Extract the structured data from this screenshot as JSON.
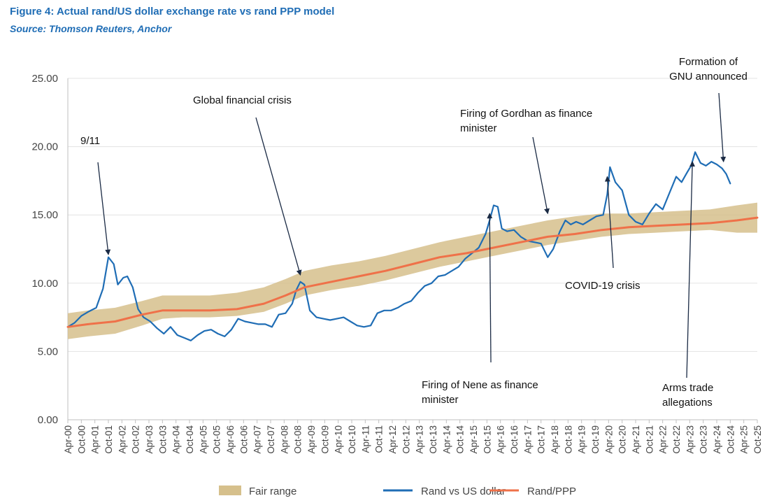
{
  "title": "Figure 4: Actual rand/US dollar exchange rate vs rand PPP model",
  "source": "Source: Thomson Reuters, Anchor",
  "chart_data": {
    "type": "line",
    "title": "Figure 4: Actual rand/US dollar exchange rate vs rand PPP model",
    "ylim": [
      0,
      25
    ],
    "xlim": [
      2000.25,
      2025.75
    ],
    "yticks": [
      "0.00",
      "5.00",
      "10.00",
      "15.00",
      "20.00",
      "25.00"
    ],
    "xticks": [
      "Apr-00",
      "Oct-00",
      "Apr-01",
      "Oct-01",
      "Apr-02",
      "Oct-02",
      "Apr-03",
      "Oct-03",
      "Apr-04",
      "Oct-04",
      "Apr-05",
      "Oct-05",
      "Apr-06",
      "Oct-06",
      "Apr-07",
      "Oct-07",
      "Apr-08",
      "Oct-08",
      "Apr-09",
      "Oct-09",
      "Apr-10",
      "Oct-10",
      "Apr-11",
      "Oct-11",
      "Apr-12",
      "Oct-12",
      "Apr-13",
      "Oct-13",
      "Apr-14",
      "Oct-14",
      "Apr-15",
      "Oct-15",
      "Apr-16",
      "Oct-16",
      "Apr-17",
      "Oct-17",
      "Apr-18",
      "Oct-18",
      "Apr-19",
      "Oct-19",
      "Apr-20",
      "Oct-20",
      "Apr-21",
      "Oct-21",
      "Apr-22",
      "Oct-22",
      "Apr-23",
      "Oct-23",
      "Apr-24",
      "Oct-24",
      "Apr-25",
      "Oct-25"
    ],
    "grid": true,
    "legend_position": "bottom",
    "series": [
      {
        "name": "Fair range",
        "type": "band",
        "color": "#d6c08c",
        "x": [
          2000.25,
          2001,
          2002,
          2003,
          2003.75,
          2004.5,
          2005.5,
          2006.5,
          2007.5,
          2008.3,
          2009,
          2010,
          2011,
          2012,
          2013,
          2014,
          2015,
          2016,
          2017,
          2018,
          2019,
          2020,
          2021,
          2022,
          2023,
          2024,
          2025,
          2025.75
        ],
        "lower": [
          5.9,
          6.1,
          6.3,
          6.9,
          7.4,
          7.5,
          7.5,
          7.6,
          7.9,
          8.5,
          9.1,
          9.5,
          9.8,
          10.2,
          10.7,
          11.2,
          11.6,
          12.0,
          12.4,
          12.8,
          13.1,
          13.4,
          13.6,
          13.7,
          13.8,
          13.9,
          13.7,
          13.7
        ],
        "upper": [
          7.8,
          8.0,
          8.2,
          8.7,
          9.1,
          9.1,
          9.1,
          9.3,
          9.7,
          10.3,
          10.9,
          11.3,
          11.6,
          12.0,
          12.5,
          13.0,
          13.4,
          13.8,
          14.2,
          14.6,
          14.9,
          15.1,
          15.1,
          15.2,
          15.3,
          15.4,
          15.7,
          15.9
        ]
      },
      {
        "name": "Rand vs US dollar",
        "color": "#1f6db5",
        "x": [
          2000.25,
          2000.5,
          2000.75,
          2001,
          2001.3,
          2001.55,
          2001.75,
          2001.95,
          2002.1,
          2002.3,
          2002.45,
          2002.65,
          2002.85,
          2003.05,
          2003.3,
          2003.55,
          2003.8,
          2004.05,
          2004.3,
          2004.55,
          2004.8,
          2005.05,
          2005.3,
          2005.55,
          2005.8,
          2006.05,
          2006.3,
          2006.55,
          2006.8,
          2007.05,
          2007.3,
          2007.55,
          2007.8,
          2008.05,
          2008.3,
          2008.55,
          2008.7,
          2008.85,
          2009,
          2009.2,
          2009.45,
          2009.7,
          2009.95,
          2010.2,
          2010.45,
          2010.7,
          2010.95,
          2011.2,
          2011.45,
          2011.7,
          2011.95,
          2012.2,
          2012.45,
          2012.7,
          2012.95,
          2013.2,
          2013.45,
          2013.7,
          2013.95,
          2014.2,
          2014.45,
          2014.7,
          2014.95,
          2015.2,
          2015.45,
          2015.7,
          2015.85,
          2016.0,
          2016.15,
          2016.3,
          2016.5,
          2016.75,
          2017.0,
          2017.25,
          2017.5,
          2017.75,
          2018.0,
          2018.2,
          2018.45,
          2018.65,
          2018.85,
          2019.05,
          2019.3,
          2019.55,
          2019.8,
          2020.05,
          2020.2,
          2020.3,
          2020.5,
          2020.75,
          2021.0,
          2021.25,
          2021.5,
          2021.75,
          2022.0,
          2022.25,
          2022.5,
          2022.75,
          2022.95,
          2023.15,
          2023.3,
          2023.45,
          2023.65,
          2023.85,
          2024.05,
          2024.25,
          2024.45,
          2024.6,
          2024.75
        ],
        "y": [
          6.8,
          7.1,
          7.6,
          7.9,
          8.2,
          9.6,
          11.9,
          11.4,
          9.9,
          10.4,
          10.5,
          9.7,
          8.1,
          7.5,
          7.2,
          6.7,
          6.3,
          6.8,
          6.2,
          6.0,
          5.8,
          6.2,
          6.5,
          6.6,
          6.3,
          6.1,
          6.6,
          7.4,
          7.2,
          7.1,
          7.0,
          7.0,
          6.8,
          7.7,
          7.8,
          8.5,
          9.5,
          10.1,
          9.9,
          8.0,
          7.5,
          7.4,
          7.3,
          7.4,
          7.5,
          7.2,
          6.9,
          6.8,
          6.9,
          7.8,
          8.0,
          8.0,
          8.2,
          8.5,
          8.7,
          9.3,
          9.8,
          10.0,
          10.5,
          10.6,
          10.9,
          11.2,
          11.8,
          12.2,
          12.6,
          13.6,
          14.6,
          15.7,
          15.6,
          14.0,
          13.8,
          13.9,
          13.4,
          13.1,
          13.0,
          12.9,
          11.9,
          12.5,
          13.8,
          14.6,
          14.3,
          14.5,
          14.3,
          14.6,
          14.9,
          15.0,
          16.5,
          18.5,
          17.4,
          16.8,
          15.0,
          14.5,
          14.3,
          15.1,
          15.8,
          15.4,
          16.6,
          17.8,
          17.4,
          18.1,
          18.6,
          19.6,
          18.8,
          18.6,
          18.9,
          18.7,
          18.4,
          18.0,
          17.3
        ]
      },
      {
        "name": "Rand/PPP",
        "color": "#ef7149",
        "x": [
          2000.25,
          2001,
          2002,
          2003,
          2003.75,
          2004.5,
          2005.5,
          2006.5,
          2007.5,
          2008.3,
          2009,
          2010,
          2011,
          2012,
          2013,
          2014,
          2015,
          2016,
          2017,
          2018,
          2019,
          2020,
          2021,
          2022,
          2023,
          2024,
          2025,
          2025.75
        ],
        "y": [
          6.8,
          7.0,
          7.2,
          7.7,
          8.0,
          8.0,
          8.0,
          8.1,
          8.5,
          9.1,
          9.7,
          10.1,
          10.5,
          10.9,
          11.4,
          11.9,
          12.2,
          12.6,
          13.0,
          13.4,
          13.6,
          13.9,
          14.1,
          14.2,
          14.3,
          14.4,
          14.6,
          14.8
        ]
      }
    ],
    "annotations": [
      {
        "lines": [
          "9/11"
        ],
        "target_x": 2001.75,
        "target_y": 12.1
      },
      {
        "lines": [
          "Global financial crisis"
        ],
        "target_x": 2008.85,
        "target_y": 10.6
      },
      {
        "lines": [
          "Firing of Gordhan as finance",
          "minister"
        ],
        "target_x": 2018.0,
        "target_y": 15.1
      },
      {
        "lines": [
          "Formation of",
          "GNU announced"
        ],
        "target_x": 2024.5,
        "target_y": 18.9
      },
      {
        "lines": [
          "COVID-19 crisis"
        ],
        "target_x": 2020.2,
        "target_y": 17.8
      },
      {
        "lines": [
          "Firing of Nene as finance",
          "minister"
        ],
        "target_x": 2015.85,
        "target_y": 15.1
      },
      {
        "lines": [
          "Arms trade",
          "allegations"
        ],
        "target_x": 2023.35,
        "target_y": 18.9
      }
    ]
  }
}
